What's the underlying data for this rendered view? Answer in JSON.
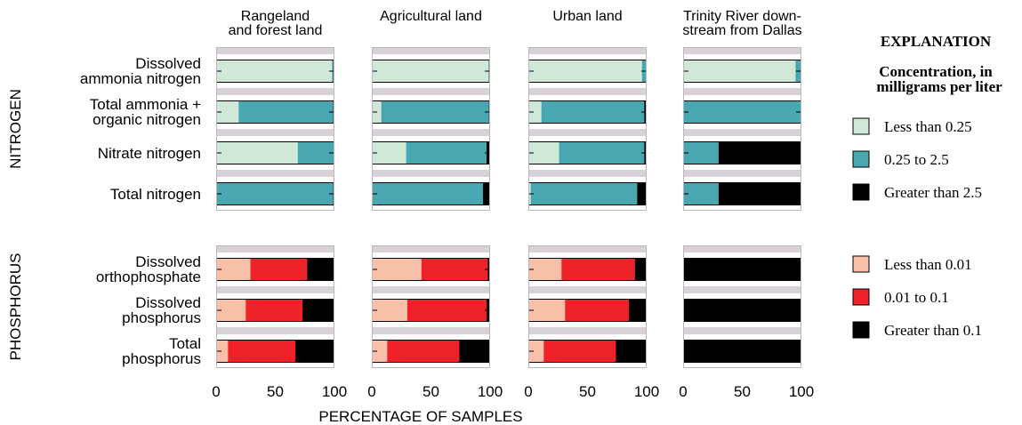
{
  "chart_data": {
    "type": "bar",
    "stacked": true,
    "xlabel": "PERCENTAGE OF SAMPLES",
    "xlim": [
      0,
      100
    ],
    "xticks": [
      "0",
      "50",
      "100"
    ],
    "panels": [
      {
        "title_lines": [
          "Rangeland",
          "and forest land"
        ]
      },
      {
        "title_lines": [
          "Agricultural land"
        ]
      },
      {
        "title_lines": [
          "Urban land"
        ]
      },
      {
        "title_lines": [
          "Trinity River down-",
          "stream from Dallas"
        ]
      }
    ],
    "groups": [
      {
        "label": "NITROGEN",
        "categories": [
          {
            "lines": [
              "Dissolved",
              "ammonia nitrogen"
            ]
          },
          {
            "lines": [
              "Total ammonia +",
              "organic nitrogen"
            ]
          },
          {
            "lines": [
              "Nitrate nitrogen"
            ]
          },
          {
            "lines": [
              "Total nitrogen"
            ]
          }
        ],
        "series": [
          {
            "name": "Less than 0.25",
            "color": "#cfe8d8"
          },
          {
            "name": "0.25 to 2.5",
            "color": "#48a7b0"
          },
          {
            "name": "Greater than 2.5",
            "color": "#000000"
          }
        ],
        "values": [
          [
            [
              98,
              1,
              1
            ],
            [
              19,
              80,
              1
            ],
            [
              69,
              31,
              0
            ],
            [
              0,
              99,
              1
            ]
          ],
          [
            [
              99,
              0,
              1
            ],
            [
              8,
              91,
              1
            ],
            [
              29,
              68,
              3
            ],
            [
              0,
              94,
              6
            ]
          ],
          [
            [
              96,
              4,
              0
            ],
            [
              11,
              87,
              2
            ],
            [
              26,
              72,
              2
            ],
            [
              2,
              90,
              8
            ]
          ],
          [
            [
              95,
              5,
              0
            ],
            [
              0,
              100,
              0
            ],
            [
              0,
              30,
              70
            ],
            [
              0,
              30,
              70
            ]
          ]
        ]
      },
      {
        "label": "PHOSPHORUS",
        "categories": [
          {
            "lines": [
              "Dissolved",
              "orthophosphate"
            ]
          },
          {
            "lines": [
              "Dissolved",
              "phosphorus"
            ]
          },
          {
            "lines": [
              "Total",
              "phosphorus"
            ]
          }
        ],
        "series": [
          {
            "name": "Less than 0.01",
            "color": "#f8c1a7"
          },
          {
            "name": "0.01 to 0.1",
            "color": "#ee2228"
          },
          {
            "name": "Greater than 0.1",
            "color": "#000000"
          }
        ],
        "values": [
          [
            [
              29,
              48,
              23
            ],
            [
              25,
              48,
              27
            ],
            [
              10,
              57,
              33
            ]
          ],
          [
            [
              42,
              56,
              2
            ],
            [
              30,
              67,
              3
            ],
            [
              13,
              61,
              26
            ]
          ],
          [
            [
              28,
              62,
              10
            ],
            [
              31,
              54,
              15
            ],
            [
              13,
              61,
              26
            ]
          ],
          [
            [
              0,
              0,
              100
            ],
            [
              0,
              0,
              100
            ],
            [
              0,
              0,
              100
            ]
          ]
        ]
      }
    ]
  },
  "explanation": {
    "title": "EXPLANATION",
    "subtitle_lines": [
      "Concentration, in",
      "milligrams per liter"
    ]
  },
  "colors": {
    "panel_background": "#d8d1d8",
    "band_white": "#ffffff"
  }
}
